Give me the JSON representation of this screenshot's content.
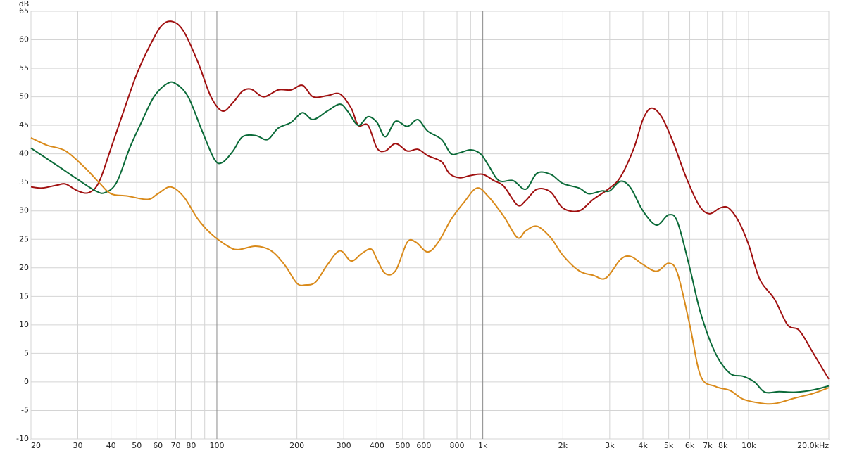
{
  "chart_data": {
    "type": "line",
    "y_label": "dB",
    "xscale": "log",
    "grid": true,
    "xlim": [
      20,
      20000
    ],
    "ylim": [
      -10,
      65
    ],
    "xticks": [
      20,
      30,
      40,
      50,
      60,
      70,
      80,
      100,
      200,
      300,
      400,
      500,
      600,
      800,
      {
        "value": 1000,
        "label": "1k"
      },
      {
        "value": 2000,
        "label": "2k"
      },
      {
        "value": 3000,
        "label": "3k"
      },
      {
        "value": 4000,
        "label": "4k"
      },
      {
        "value": 5000,
        "label": "5k"
      },
      {
        "value": 6000,
        "label": "6k"
      },
      {
        "value": 7000,
        "label": "7k"
      },
      {
        "value": 8000,
        "label": "8k"
      },
      {
        "value": 10000,
        "label": "10k"
      },
      {
        "value": 20000,
        "label": "20,0kHz"
      }
    ],
    "x_minor_ticks": [
      90,
      900,
      9000
    ],
    "yticks": [
      -10,
      -5,
      0,
      5,
      10,
      15,
      20,
      25,
      30,
      35,
      40,
      45,
      50,
      55,
      60,
      65
    ],
    "series": [
      {
        "color": "#a01010",
        "x": [
          20,
          22,
          25,
          27,
          30,
          33,
          36,
          40,
          45,
          50,
          56,
          62,
          68,
          75,
          85,
          95,
          105,
          115,
          125,
          135,
          150,
          170,
          190,
          210,
          230,
          260,
          290,
          320,
          340,
          370,
          400,
          430,
          470,
          520,
          570,
          620,
          700,
          750,
          820,
          900,
          1000,
          1100,
          1200,
          1350,
          1450,
          1600,
          1800,
          2000,
          2300,
          2600,
          3000,
          3300,
          3700,
          4000,
          4300,
          4700,
          5200,
          5800,
          6500,
          7100,
          7800,
          8400,
          9200,
          10000,
          11000,
          12500,
          14000,
          15500,
          17500,
          20000
        ],
        "values": [
          34.2,
          34,
          34.5,
          34.7,
          33.5,
          33.2,
          35,
          41,
          48,
          54,
          59,
          62.5,
          63.2,
          61.5,
          56,
          50,
          47.5,
          49,
          51,
          51.3,
          50,
          51.2,
          51.2,
          52,
          50,
          50.2,
          50.5,
          48,
          45,
          45,
          41,
          40.5,
          41.8,
          40.5,
          40.8,
          39.7,
          38.6,
          36.5,
          35.8,
          36.2,
          36.4,
          35.3,
          34.3,
          31,
          31.8,
          33.8,
          33.3,
          30.5,
          30,
          32,
          34,
          36,
          41,
          46,
          48,
          46.5,
          42,
          36,
          31,
          29.5,
          30.5,
          30.5,
          28,
          24,
          18,
          14.5,
          10,
          9,
          5,
          0.5
        ]
      },
      {
        "color": "#0a6a38",
        "x": [
          20,
          25,
          30,
          35,
          38,
          42,
          47,
          52,
          58,
          65,
          70,
          78,
          88,
          98,
          105,
          115,
          125,
          140,
          155,
          170,
          190,
          210,
          230,
          260,
          290,
          310,
          340,
          370,
          400,
          430,
          470,
          520,
          570,
          620,
          700,
          760,
          820,
          900,
          980,
          1050,
          1150,
          1300,
          1450,
          1600,
          1800,
          2000,
          2300,
          2500,
          2800,
          3000,
          3300,
          3600,
          4000,
          4500,
          5000,
          5400,
          6000,
          6600,
          7500,
          8500,
          9500,
          10500,
          11500,
          13000,
          15000,
          17500,
          20000
        ],
        "values": [
          41,
          38,
          35.5,
          33.5,
          33.2,
          35,
          41,
          45.5,
          50,
          52.3,
          52.3,
          50,
          44,
          39,
          38.5,
          40.5,
          43,
          43.2,
          42.5,
          44.5,
          45.5,
          47.2,
          46,
          47.5,
          48.7,
          47.5,
          45,
          46.5,
          45.5,
          43,
          45.7,
          44.8,
          46,
          44,
          42.5,
          40,
          40.2,
          40.7,
          40,
          38,
          35.3,
          35.3,
          33.8,
          36.6,
          36.4,
          34.8,
          34,
          33,
          33.5,
          33.5,
          35.2,
          34,
          30,
          27.5,
          29.3,
          28,
          20,
          12,
          5,
          1.5,
          1,
          0,
          -1.8,
          -1.7,
          -1.8,
          -1.4,
          -0.7
        ]
      },
      {
        "color": "#d98a1a",
        "x": [
          20,
          23,
          27,
          32,
          36,
          40,
          46,
          55,
          60,
          67,
          75,
          85,
          95,
          110,
          120,
          140,
          160,
          180,
          200,
          215,
          235,
          260,
          290,
          320,
          350,
          380,
          400,
          430,
          470,
          520,
          560,
          620,
          680,
          760,
          850,
          950,
          1050,
          1200,
          1350,
          1450,
          1600,
          1800,
          2000,
          2300,
          2600,
          2900,
          3300,
          3600,
          4000,
          4500,
          5000,
          5400,
          6000,
          6600,
          7500,
          8500,
          9500,
          11000,
          12500,
          15000,
          17500,
          20000
        ],
        "values": [
          42.8,
          41.5,
          40.5,
          37.5,
          35,
          33,
          32.6,
          32,
          33,
          34.2,
          32.5,
          28.5,
          26,
          23.8,
          23.2,
          23.8,
          23,
          20.5,
          17.3,
          17,
          17.5,
          20.5,
          23,
          21.2,
          22.5,
          23.3,
          21.5,
          19,
          19.5,
          24.5,
          24.5,
          22.8,
          24.5,
          28.5,
          31.5,
          34,
          32.5,
          29,
          25.3,
          26.5,
          27.3,
          25.3,
          22.2,
          19.5,
          18.7,
          18.2,
          21.5,
          22,
          20.6,
          19.4,
          20.8,
          19,
          10,
          1,
          -0.8,
          -1.5,
          -3,
          -3.7,
          -3.8,
          -2.8,
          -2,
          -1
        ]
      }
    ]
  }
}
